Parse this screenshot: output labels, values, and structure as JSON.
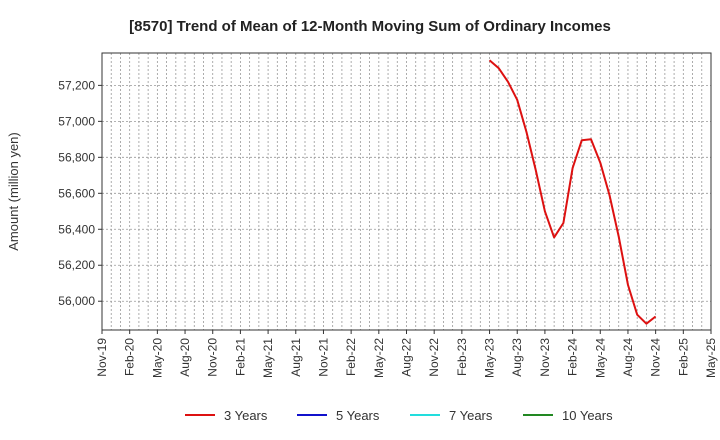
{
  "chart_data": {
    "type": "line",
    "title": "[8570]  Trend of Mean of 12-Month Moving Sum of Ordinary Incomes",
    "ylabel": "Amount (million yen)",
    "xlabel": "",
    "x_ticks": [
      "Nov-19",
      "Feb-20",
      "May-20",
      "Aug-20",
      "Nov-20",
      "Feb-21",
      "May-21",
      "Aug-21",
      "Nov-21",
      "Feb-22",
      "May-22",
      "Aug-22",
      "Nov-22",
      "Feb-23",
      "May-23",
      "Aug-23",
      "Nov-23",
      "Feb-24",
      "May-24",
      "Aug-24",
      "Nov-24",
      "Feb-25",
      "May-25"
    ],
    "y_ticks": [
      56000,
      56200,
      56400,
      56600,
      56800,
      57000,
      57200
    ],
    "y_tick_labels": [
      "56,000",
      "56,200",
      "56,400",
      "56,600",
      "56,800",
      "57,000",
      "57,200"
    ],
    "ylim": [
      55840,
      57380
    ],
    "grid": true,
    "legend_position": "bottom",
    "series": [
      {
        "name": "3 Years",
        "color": "#dd1111",
        "x": [
          "May-23",
          "Jun-23",
          "Jul-23",
          "Aug-23",
          "Sep-23",
          "Oct-23",
          "Nov-23",
          "Dec-23",
          "Jan-24",
          "Feb-24",
          "Mar-24",
          "Apr-24",
          "May-24",
          "Jun-24",
          "Jul-24",
          "Aug-24",
          "Sep-24",
          "Oct-24",
          "Nov-24"
        ],
        "values": [
          57340,
          57295,
          57220,
          57120,
          56940,
          56730,
          56500,
          56355,
          56435,
          56740,
          56895,
          56900,
          56770,
          56590,
          56360,
          56090,
          55925,
          55875,
          55915
        ]
      },
      {
        "name": "5 Years",
        "color": "#1111cc",
        "x": [],
        "values": []
      },
      {
        "name": "7 Years",
        "color": "#22dddd",
        "x": [],
        "values": []
      },
      {
        "name": "10 Years",
        "color": "#228822",
        "x": [],
        "values": []
      }
    ]
  }
}
